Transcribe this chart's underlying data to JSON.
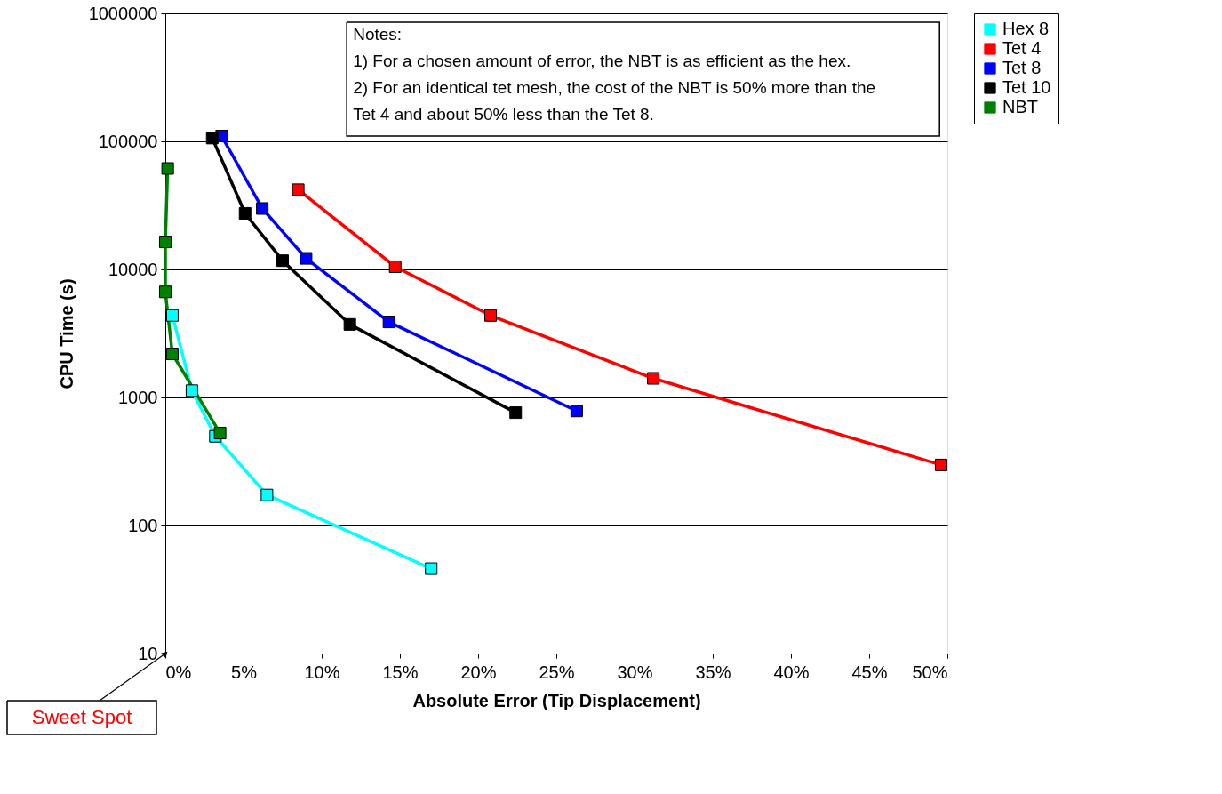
{
  "chart_data": {
    "type": "line",
    "xlabel": "Absolute Error (Tip Displacement)",
    "ylabel": "CPU Time (s)",
    "log": "y",
    "grid": "y",
    "legend": "right",
    "marker": "square",
    "line_style": "solid",
    "xlim": [
      0,
      50
    ],
    "xticks": [
      {
        "value": 0,
        "label": "0%"
      },
      {
        "value": 5,
        "label": "5%"
      },
      {
        "value": 10,
        "label": "10%"
      },
      {
        "value": 15,
        "label": "15%"
      },
      {
        "value": 20,
        "label": "20%"
      },
      {
        "value": 25,
        "label": "25%"
      },
      {
        "value": 30,
        "label": "30%"
      },
      {
        "value": 35,
        "label": "35%"
      },
      {
        "value": 40,
        "label": "40%"
      },
      {
        "value": 45,
        "label": "45%"
      },
      {
        "value": 50,
        "label": "50%"
      }
    ],
    "ylim": [
      10,
      1000000
    ],
    "yticks": [
      10,
      100,
      1000,
      10000,
      100000,
      1000000
    ],
    "series": [
      {
        "name": "Hex 8",
        "color": "#00ffff",
        "x": [
          0.45,
          1.7,
          3.2,
          6.5,
          17.0
        ],
        "values": [
          4370,
          1130,
          497,
          173,
          46
        ]
      },
      {
        "name": "Tet 4",
        "color": "#ff0000",
        "x": [
          8.5,
          14.7,
          20.8,
          31.2,
          49.6
        ],
        "values": [
          41900,
          10500,
          4370,
          1410,
          297
        ]
      },
      {
        "name": "Tet 8",
        "color": "#0000ff",
        "x": [
          3.6,
          6.2,
          9.0,
          14.3,
          26.3
        ],
        "values": [
          110000,
          29900,
          12200,
          3890,
          784
        ]
      },
      {
        "name": "Tet 10",
        "color": "#000000",
        "x": [
          3.0,
          5.1,
          7.5,
          11.8,
          22.4
        ],
        "values": [
          106000,
          27400,
          11700,
          3720,
          761
        ]
      },
      {
        "name": "NBT",
        "color": "#008000",
        "x": [
          0.15,
          0.0,
          0.0,
          0.45,
          3.5
        ],
        "values": [
          61400,
          16400,
          6680,
          2190,
          527
        ]
      }
    ],
    "annotations": [
      "Notes:\n1) For a chosen amount of error, the NBT is as efficient as the hex.\n2) For an identical tet mesh, the cost of the NBT is 50% more than the\nTet 4 and about 50% less than the Tet 8.",
      {
        "text": "Sweet Spot",
        "x": 0,
        "y": 10
      }
    ]
  }
}
